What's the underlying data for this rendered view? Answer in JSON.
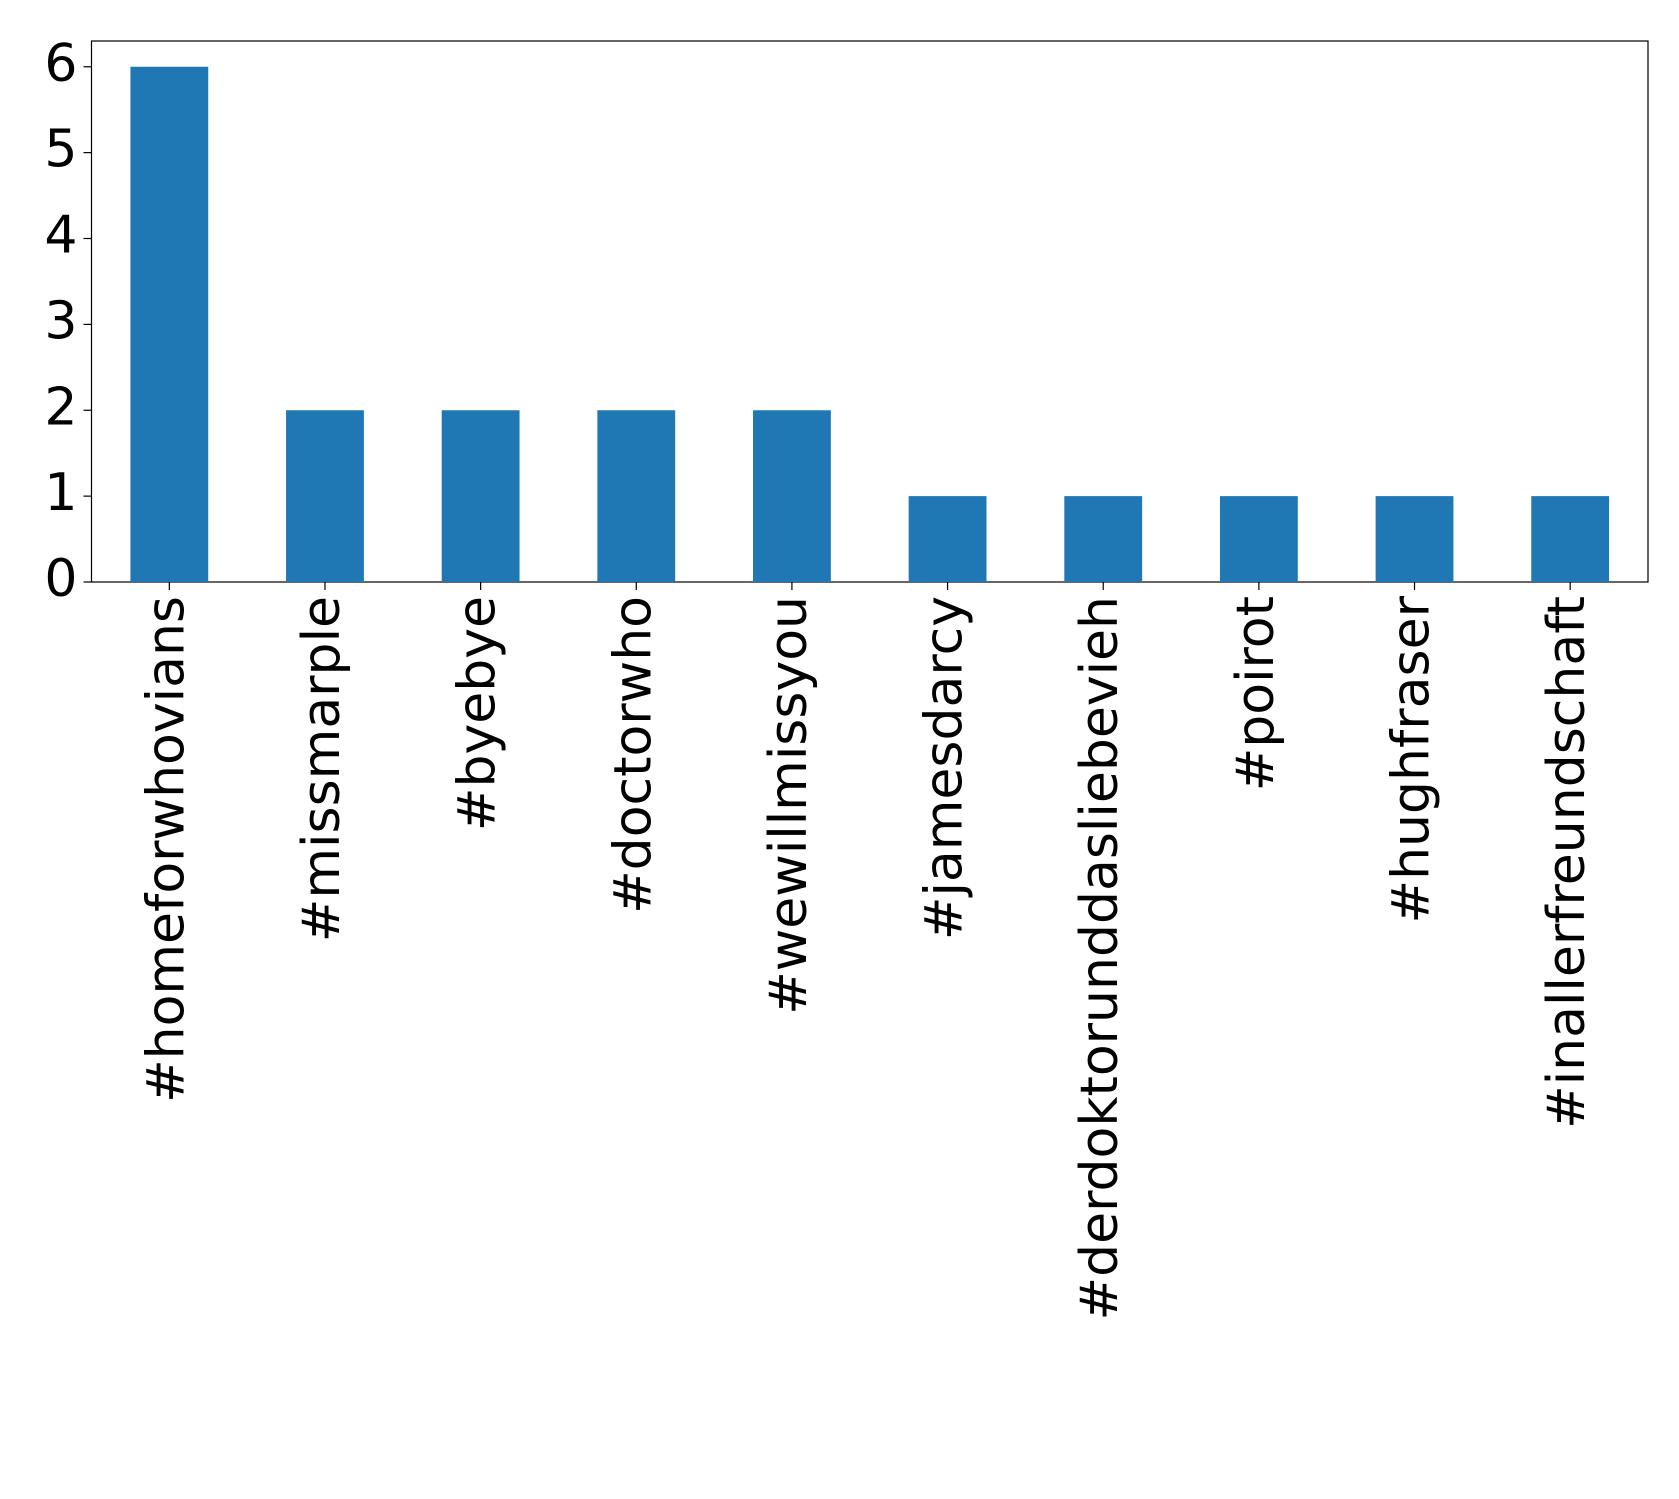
{
  "chart_data": {
    "type": "bar",
    "categories": [
      "#homeforwhovians",
      "#missmarple",
      "#byebye",
      "#doctorwho",
      "#wewillmissyou",
      "#jamesdarcy",
      "#derdoktorunddasliebevieh",
      "#poirot",
      "#hughfraser",
      "#inallerfreundschaft"
    ],
    "values": [
      6,
      2,
      2,
      2,
      2,
      1,
      1,
      1,
      1,
      1
    ],
    "color": "#1f77b4",
    "ylim": [
      0,
      6.3
    ],
    "yticks": [
      0,
      1,
      2,
      3,
      4,
      5,
      6
    ],
    "grid": false
  }
}
